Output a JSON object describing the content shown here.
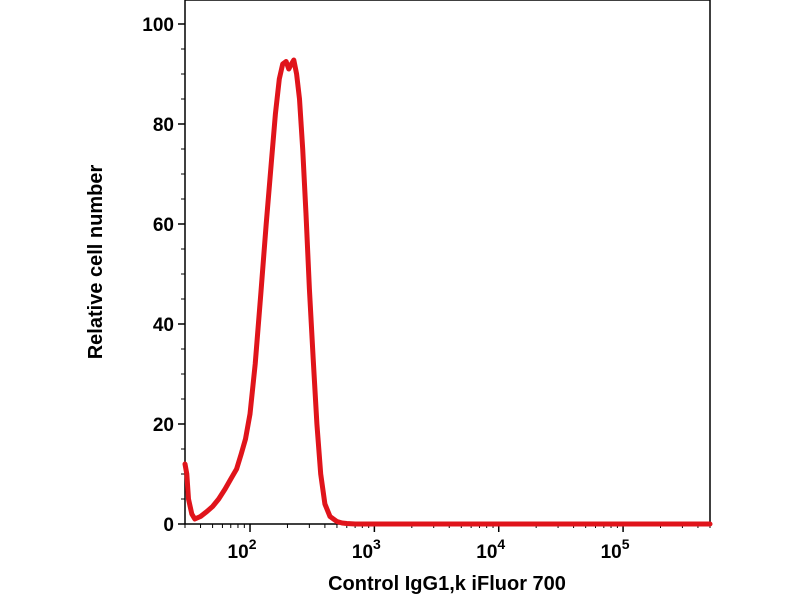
{
  "chart_data": {
    "type": "line",
    "title": "",
    "xlabel": "Control IgG1,k iFluor 700",
    "ylabel": "Relative cell number",
    "x_scale": "log",
    "xlim": [
      30,
      500000
    ],
    "ylim": [
      0,
      100
    ],
    "grid": false,
    "legend": "none",
    "y_ticks": [
      {
        "value": 0,
        "label": "0"
      },
      {
        "value": 20,
        "label": "20"
      },
      {
        "value": 40,
        "label": "40"
      },
      {
        "value": 60,
        "label": "60"
      },
      {
        "value": 80,
        "label": "80"
      },
      {
        "value": 100,
        "label": "100"
      }
    ],
    "x_ticks": [
      {
        "value": 100,
        "base": "10",
        "exp": "2"
      },
      {
        "value": 1000,
        "base": "10",
        "exp": "3"
      },
      {
        "value": 10000,
        "base": "10",
        "exp": "4"
      },
      {
        "value": 100000,
        "base": "10",
        "exp": "5"
      }
    ],
    "series": [
      {
        "color": "#e0141b",
        "x": [
          30,
          31,
          32,
          34,
          36,
          40,
          45,
          50,
          56,
          63,
          70,
          78,
          85,
          92,
          100,
          110,
          122,
          135,
          148,
          160,
          172,
          183,
          195,
          205,
          215,
          225,
          237,
          250,
          265,
          282,
          300,
          322,
          345,
          370,
          400,
          440,
          500,
          550,
          600,
          700,
          1000,
          10000,
          100000,
          500000
        ],
        "y": [
          12,
          10,
          5,
          2,
          1,
          1.5,
          2.5,
          3.5,
          5,
          7,
          9,
          11,
          14,
          17,
          22,
          32,
          46,
          60,
          72,
          82,
          89,
          92,
          92.5,
          91,
          92,
          92.8,
          90,
          85,
          75,
          62,
          47,
          33,
          20,
          10,
          4,
          1.5,
          0.5,
          0.2,
          0.1,
          0,
          0,
          0,
          0,
          0
        ]
      }
    ]
  }
}
